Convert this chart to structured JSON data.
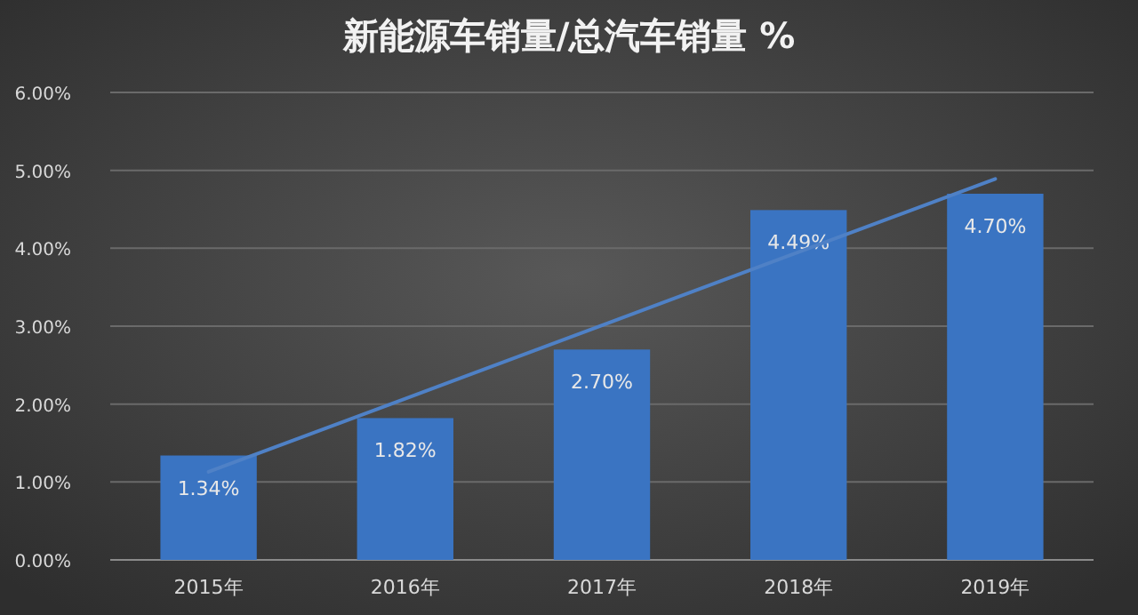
{
  "chart_data": {
    "type": "bar",
    "title": "新能源车销量/总汽车销量 %",
    "categories": [
      "2015年",
      "2016年",
      "2017年",
      "2018年",
      "2019年"
    ],
    "series": [
      {
        "color": "#3a74c2",
        "values": [
          1.34,
          1.82,
          2.7,
          4.49,
          4.7
        ],
        "value_labels": [
          "1.34%",
          "1.82%",
          "2.70%",
          "4.49%",
          "4.70%"
        ]
      },
      {
        "type": "line",
        "color": "#4f81c6",
        "values": [
          1.13,
          2.07,
          3.01,
          3.95,
          4.89
        ]
      }
    ],
    "ylim": [
      0,
      6
    ],
    "yticks": [
      {
        "value": 0,
        "label": "0.00%"
      },
      {
        "value": 1,
        "label": "1.00%"
      },
      {
        "value": 2,
        "label": "2.00%"
      },
      {
        "value": 3,
        "label": "3.00%"
      },
      {
        "value": 4,
        "label": "4.00%"
      },
      {
        "value": 5,
        "label": "5.00%"
      },
      {
        "value": 6,
        "label": "6.00%"
      }
    ],
    "grid": "y"
  }
}
